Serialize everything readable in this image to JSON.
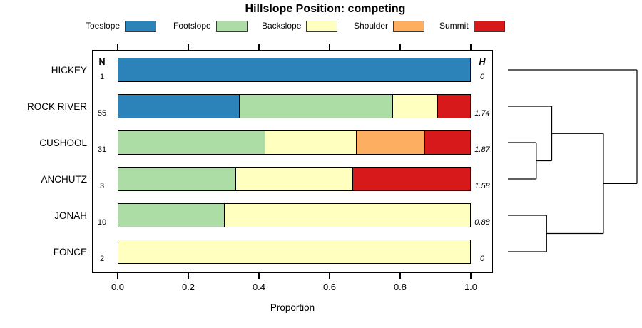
{
  "title": "Hillslope Position: competing",
  "legend": {
    "items": [
      {
        "label": "Toeslope",
        "color": "#2B83BA"
      },
      {
        "label": "Footslope",
        "color": "#ABDDA4"
      },
      {
        "label": "Backslope",
        "color": "#FFFFBF"
      },
      {
        "label": "Shoulder",
        "color": "#FDAE61"
      },
      {
        "label": "Summit",
        "color": "#D7191C"
      }
    ]
  },
  "columns": {
    "n_header": "N",
    "h_header": "H"
  },
  "xaxis": {
    "label": "Proportion",
    "ticks": [
      "0.0",
      "0.2",
      "0.4",
      "0.6",
      "0.8",
      "1.0"
    ]
  },
  "chart_data": {
    "type": "bar",
    "stacked": true,
    "orientation": "horizontal",
    "title": "Hillslope Position: competing",
    "xlabel": "Proportion",
    "xlim": [
      0,
      1
    ],
    "grid": false,
    "legend_position": "top",
    "categories": [
      "HICKEY",
      "ROCK RIVER",
      "CUSHOOL",
      "ANCHUTZ",
      "JONAH",
      "FONCE"
    ],
    "n_values": [
      1,
      55,
      31,
      3,
      10,
      2
    ],
    "h_values": [
      "0",
      "1.74",
      "1.87",
      "1.58",
      "0.88",
      "0"
    ],
    "series": [
      {
        "name": "Toeslope",
        "color": "#2B83BA",
        "values": [
          1,
          0.345,
          0,
          0,
          0,
          0
        ]
      },
      {
        "name": "Footslope",
        "color": "#ABDDA4",
        "values": [
          0,
          0.436,
          0.419,
          0.333,
          0.3,
          0
        ]
      },
      {
        "name": "Backslope",
        "color": "#FFFFBF",
        "values": [
          0,
          0.127,
          0.258,
          0.333,
          0.7,
          1
        ]
      },
      {
        "name": "Shoulder",
        "color": "#FDAE61",
        "values": [
          0,
          0,
          0.194,
          0,
          0,
          0
        ]
      },
      {
        "name": "Summit",
        "color": "#D7191C",
        "values": [
          0,
          0.092,
          0.129,
          0.334,
          0,
          0
        ]
      }
    ],
    "dendrogram": {
      "leaves": [
        "HICKEY",
        "ROCK RIVER",
        "CUSHOOL",
        "ANCHUTZ",
        "JONAH",
        "FONCE"
      ],
      "merges": [
        {
          "children": [
            "CUSHOOL",
            "ANCHUTZ"
          ],
          "height": 0.22
        },
        {
          "children": [
            "JONAH",
            "FONCE"
          ],
          "height": 0.3
        },
        {
          "children": [
            "ROCK RIVER",
            "merge0"
          ],
          "height": 0.34
        },
        {
          "children": [
            "merge2",
            "merge1"
          ],
          "height": 0.74
        },
        {
          "children": [
            "HICKEY",
            "merge3"
          ],
          "height": 1.0
        }
      ]
    }
  }
}
